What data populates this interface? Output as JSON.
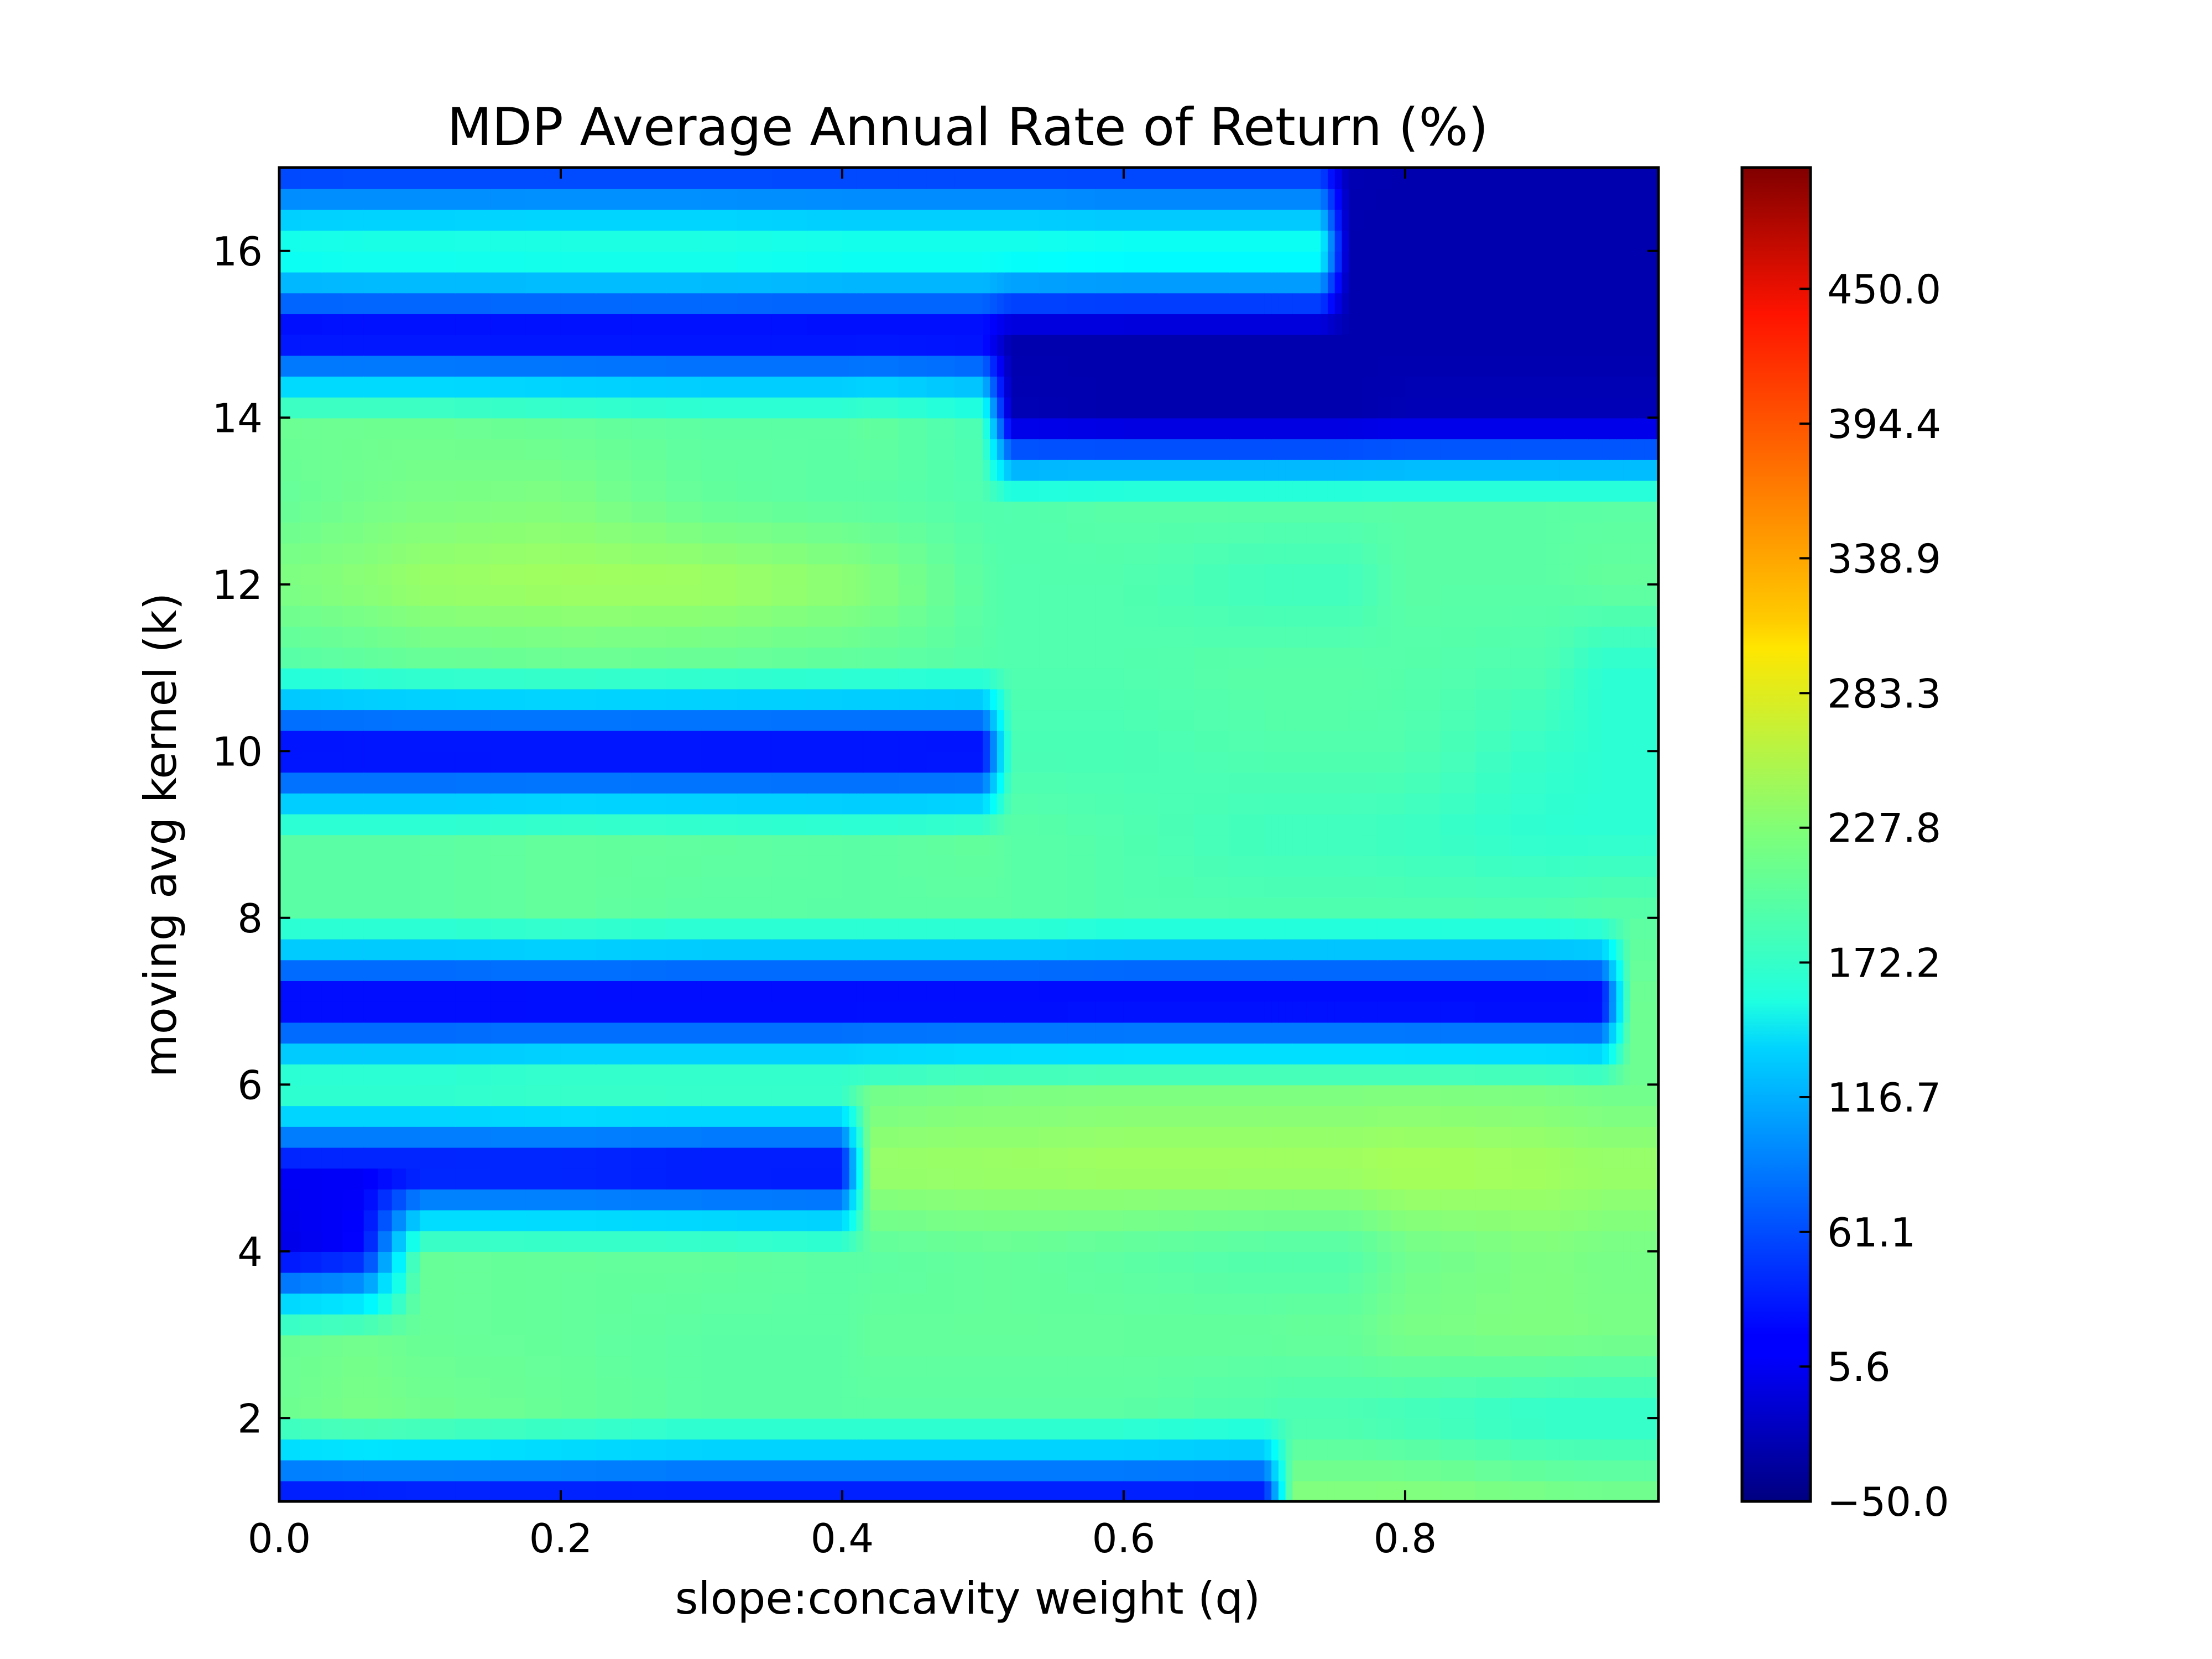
{
  "chart_data": {
    "type": "heatmap",
    "title": "MDP Average Annual Rate of Return (%)",
    "xlabel": "slope:concavity weight (q)",
    "ylabel": "moving avg kernel (k)",
    "xlim": [
      0.0,
      0.98
    ],
    "ylim": [
      1,
      17
    ],
    "x_ticks": [
      "0.0",
      "0.2",
      "0.4",
      "0.6",
      "0.8"
    ],
    "y_ticks": [
      "2",
      "4",
      "6",
      "8",
      "10",
      "12",
      "14",
      "16"
    ],
    "colorbar": {
      "colormap": "jet",
      "range": [
        -50.0,
        500.0
      ],
      "tick_labels": [
        "−50.0",
        "5.6",
        "61.1",
        "116.7",
        "172.2",
        "227.8",
        "283.3",
        "338.9",
        "394.4",
        "450.0"
      ]
    },
    "k": [
      1,
      2,
      3,
      4,
      5,
      6,
      7,
      8,
      9,
      10,
      11,
      12,
      13,
      14,
      15,
      16,
      17
    ],
    "q": [
      0.0,
      0.06,
      0.1,
      0.2,
      0.3,
      0.4,
      0.42,
      0.5,
      0.52,
      0.6,
      0.7,
      0.72,
      0.74,
      0.76,
      0.8,
      0.9,
      0.94,
      0.96,
      0.98
    ],
    "z": [
      [
        10,
        10,
        12,
        12,
        12,
        12,
        12,
        12,
        12,
        12,
        12,
        230,
        230,
        230,
        232,
        225,
        222,
        222,
        222
      ],
      [
        215,
        222,
        218,
        212,
        205,
        205,
        205,
        205,
        205,
        205,
        198,
        195,
        195,
        195,
        190,
        180,
        180,
        180,
        180
      ],
      [
        212,
        218,
        212,
        210,
        205,
        205,
        210,
        210,
        210,
        210,
        210,
        212,
        212,
        212,
        222,
        225,
        222,
        222,
        222
      ],
      [
        5,
        22,
        212,
        210,
        210,
        205,
        205,
        210,
        210,
        205,
        200,
        200,
        200,
        200,
        215,
        225,
        220,
        220,
        220
      ],
      [
        15,
        15,
        15,
        15,
        10,
        10,
        240,
        242,
        242,
        245,
        245,
        245,
        245,
        245,
        250,
        245,
        240,
        240,
        240
      ],
      [
        205,
        205,
        205,
        210,
        210,
        210,
        215,
        220,
        220,
        222,
        222,
        222,
        222,
        222,
        222,
        220,
        215,
        215,
        215
      ],
      [
        0,
        0,
        0,
        0,
        0,
        0,
        0,
        0,
        0,
        0,
        0,
        0,
        0,
        0,
        0,
        0,
        0,
        215,
        215
      ],
      [
        205,
        205,
        205,
        210,
        205,
        205,
        205,
        205,
        205,
        200,
        200,
        200,
        200,
        200,
        200,
        200,
        205,
        205,
        205
      ],
      [
        205,
        205,
        205,
        210,
        208,
        205,
        205,
        210,
        205,
        200,
        190,
        190,
        190,
        190,
        188,
        180,
        180,
        180,
        180
      ],
      [
        5,
        5,
        5,
        5,
        5,
        5,
        5,
        5,
        195,
        195,
        200,
        200,
        200,
        200,
        200,
        185,
        180,
        180,
        180
      ],
      [
        200,
        205,
        208,
        210,
        208,
        205,
        205,
        202,
        200,
        200,
        205,
        205,
        205,
        205,
        202,
        198,
        180,
        180,
        180
      ],
      [
        225,
        232,
        240,
        245,
        245,
        235,
        230,
        205,
        200,
        200,
        190,
        190,
        190,
        190,
        205,
        205,
        210,
        210,
        210
      ],
      [
        210,
        218,
        222,
        225,
        210,
        205,
        205,
        200,
        200,
        205,
        205,
        205,
        205,
        205,
        205,
        205,
        205,
        205,
        205
      ],
      [
        215,
        215,
        215,
        210,
        205,
        205,
        210,
        195,
        -20,
        -25,
        -25,
        -25,
        -25,
        -25,
        -20,
        -20,
        -20,
        -20,
        -20
      ],
      [
        5,
        5,
        5,
        5,
        5,
        5,
        5,
        5,
        -25,
        -25,
        -25,
        -25,
        -25,
        -25,
        -25,
        -25,
        -25,
        -25,
        -25
      ],
      [
        185,
        188,
        188,
        190,
        190,
        185,
        185,
        185,
        185,
        180,
        180,
        180,
        180,
        -25,
        -25,
        -25,
        -25,
        -25,
        -25
      ],
      [
        40,
        40,
        40,
        40,
        40,
        40,
        40,
        40,
        40,
        40,
        40,
        40,
        40,
        -22,
        -25,
        -25,
        -25,
        -25,
        -25
      ]
    ]
  }
}
